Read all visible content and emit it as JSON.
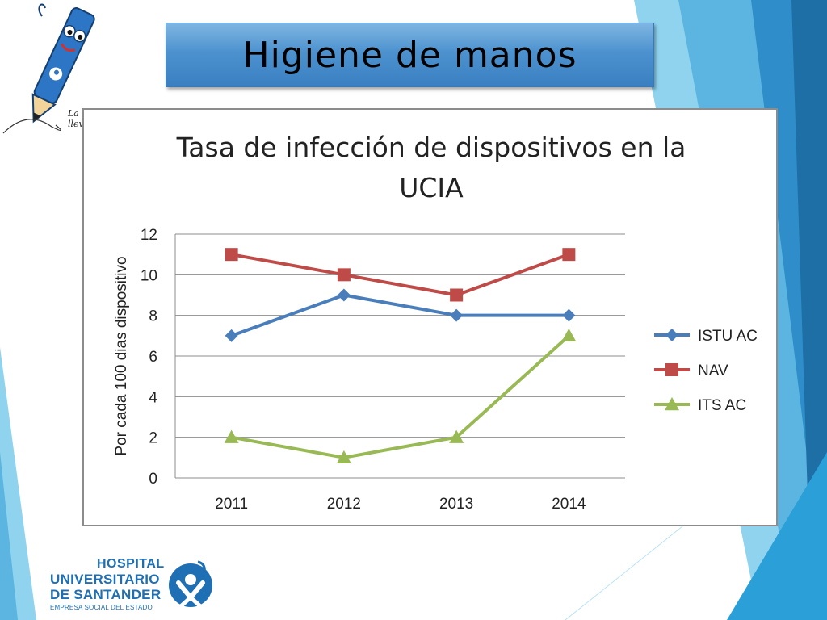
{
  "slide": {
    "title": "Higiene de manos",
    "slogan_line1": "La calidad",
    "slogan_line2": "lleva mi firma",
    "hospital_line1": "HOSPITAL",
    "hospital_line2": "UNIVERSITARIO",
    "hospital_line3": "DE SANTANDER",
    "hospital_line4": "EMPRESA SOCIAL DEL ESTADO",
    "colors": {
      "title_box": "#4d92cf",
      "accent_dark": "#1e6fa6",
      "accent_light": "#8fd3ef"
    }
  },
  "chart_data": {
    "type": "line",
    "title_line1": "Tasa de infección de dispositivos en la",
    "title_line2": "UCIA",
    "xlabel": "",
    "ylabel": "Por cada 100 dias dispositivo",
    "categories": [
      "2011",
      "2012",
      "2013",
      "2014"
    ],
    "ylim": [
      0,
      12
    ],
    "yticks": [
      0,
      2,
      4,
      6,
      8,
      10,
      12
    ],
    "grid": true,
    "legend_position": "right",
    "series": [
      {
        "name": "ISTU AC",
        "values": [
          7,
          9,
          8,
          8
        ],
        "color": "#4a7ebb",
        "marker": "diamond"
      },
      {
        "name": "NAV",
        "values": [
          11,
          10,
          9,
          11
        ],
        "color": "#be4b48",
        "marker": "square"
      },
      {
        "name": "ITS AC",
        "values": [
          2,
          1,
          2,
          7
        ],
        "color": "#98b954",
        "marker": "triangle"
      }
    ]
  }
}
